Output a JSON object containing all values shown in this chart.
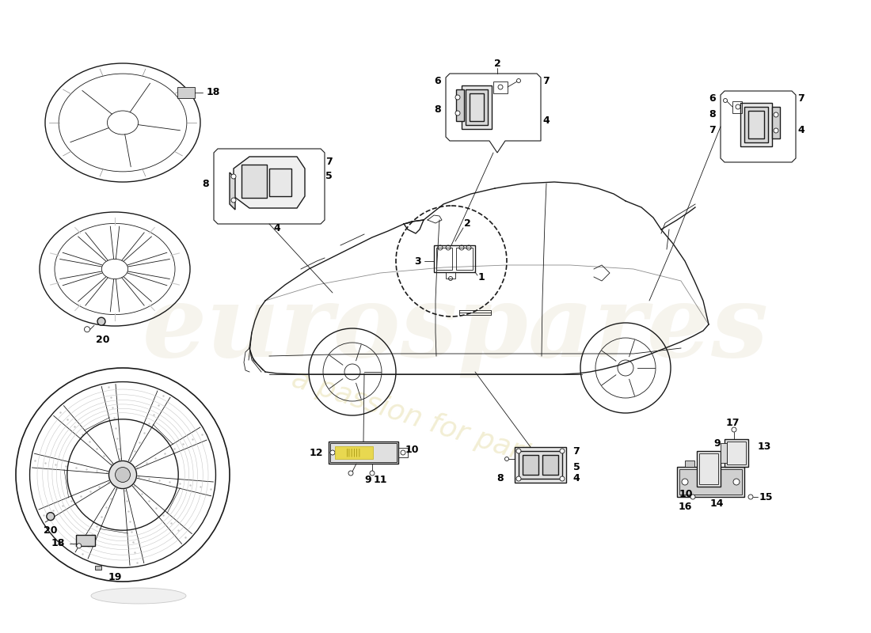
{
  "bg_color": "#ffffff",
  "line_color": "#1a1a1a",
  "light_gray": "#c8c8c8",
  "mid_gray": "#888888",
  "dark_gray": "#555555",
  "very_light_gray": "#e8e8e8",
  "watermark_color_main": "#d8d0b0",
  "watermark_color_sub": "#e8e0b8",
  "lw_main": 1.0,
  "lw_thin": 0.6,
  "lw_thick": 1.4,
  "label_fontsize": 9,
  "label_fontsize_sm": 8
}
